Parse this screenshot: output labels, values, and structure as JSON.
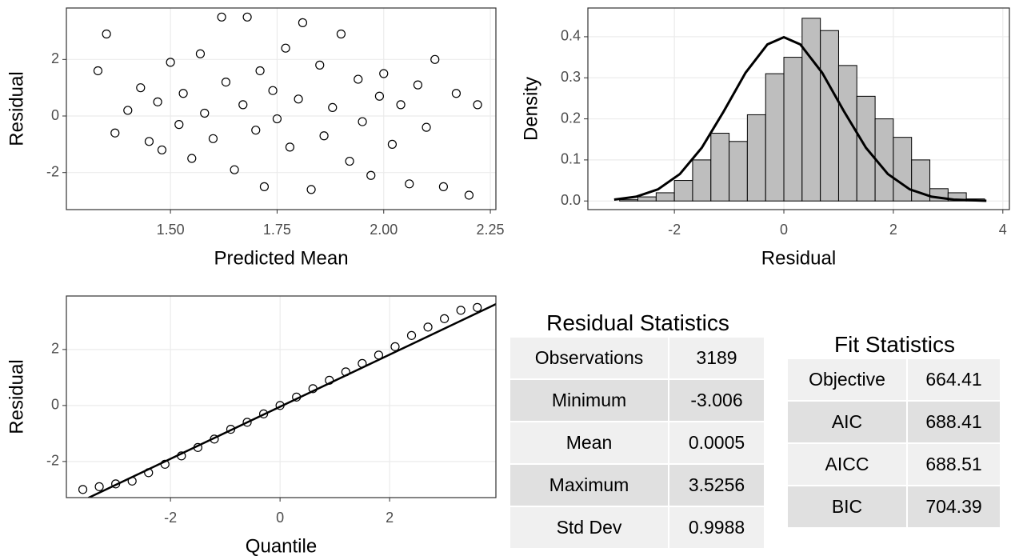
{
  "chart_data": [
    {
      "type": "scatter",
      "x_label": "Predicted Mean",
      "y_label": "Residual",
      "x": [
        1.33,
        1.35,
        1.37,
        1.4,
        1.43,
        1.45,
        1.47,
        1.48,
        1.5,
        1.52,
        1.53,
        1.55,
        1.57,
        1.58,
        1.6,
        1.62,
        1.63,
        1.65,
        1.67,
        1.68,
        1.7,
        1.71,
        1.72,
        1.74,
        1.75,
        1.77,
        1.78,
        1.8,
        1.81,
        1.83,
        1.85,
        1.86,
        1.88,
        1.9,
        1.92,
        1.94,
        1.95,
        1.97,
        1.99,
        2.0,
        2.02,
        2.04,
        2.06,
        2.08,
        2.1,
        2.12,
        2.14,
        2.17,
        2.2,
        2.22
      ],
      "values": [
        1.6,
        2.9,
        -0.6,
        0.2,
        1.0,
        -0.9,
        0.5,
        -1.2,
        1.9,
        -0.3,
        0.8,
        -1.5,
        2.2,
        0.1,
        -0.8,
        3.5,
        1.2,
        -1.9,
        0.4,
        3.5,
        -0.5,
        1.6,
        -2.5,
        0.9,
        -0.1,
        2.4,
        -1.1,
        0.6,
        3.3,
        -2.6,
        1.8,
        -0.7,
        0.3,
        2.9,
        -1.6,
        1.3,
        -0.2,
        -2.1,
        0.7,
        1.5,
        -1.0,
        0.4,
        -2.4,
        1.1,
        -0.4,
        2.0,
        -2.5,
        0.8,
        -2.8,
        0.4
      ],
      "color": "#000000",
      "xlim": [
        1.256,
        2.263
      ],
      "xticks": [
        {
          "value": 1.5,
          "label": "1.50"
        },
        1.75,
        {
          "value": 2.0,
          "label": "2.00"
        },
        2.25
      ],
      "ylim": [
        -3.31,
        3.82
      ],
      "yticks": [
        -2,
        0,
        2
      ],
      "grid": true
    },
    {
      "type": "histogram",
      "x_label": "Residual",
      "y_label": "Density",
      "bins": [
        -3.0,
        -2.667,
        -2.333,
        -2.0,
        -1.667,
        -1.333,
        -1.0,
        -0.667,
        -0.333,
        0.0,
        0.333,
        0.667,
        1.0,
        1.333,
        1.667,
        2.0,
        2.333,
        2.667,
        3.0,
        3.333,
        3.667
      ],
      "values": [
        0.003,
        0.01,
        0.02,
        0.05,
        0.1,
        0.165,
        0.145,
        0.21,
        0.31,
        0.35,
        0.445,
        0.415,
        0.33,
        0.255,
        0.2,
        0.155,
        0.1,
        0.03,
        0.02,
        0.005
      ],
      "color": "#bebebe",
      "density_curve": {
        "x": [
          -3.1,
          -2.7,
          -2.3,
          -1.9,
          -1.5,
          -1.1,
          -0.7,
          -0.3,
          0,
          0.3,
          0.7,
          1.1,
          1.5,
          1.9,
          2.3,
          2.7,
          3.1,
          3.7
        ],
        "y": [
          0.0033,
          0.0104,
          0.0283,
          0.0656,
          0.1295,
          0.2179,
          0.3123,
          0.3814,
          0.3989,
          0.3814,
          0.3123,
          0.2179,
          0.1295,
          0.0656,
          0.0283,
          0.0104,
          0.0033,
          0.0004
        ]
      },
      "xlim": [
        -3.58,
        4.12
      ],
      "xticks": [
        -2,
        0,
        2,
        4
      ],
      "ylim": [
        -0.021,
        0.47
      ],
      "yticks": [
        {
          "value": 0,
          "label": "0.0"
        },
        0.1,
        0.2,
        0.3,
        0.4
      ],
      "grid": true
    },
    {
      "type": "qq",
      "x_label": "Quantile",
      "y_label": "Residual",
      "x": [
        -3.6,
        -3.3,
        -3.0,
        -2.7,
        -2.4,
        -2.1,
        -1.8,
        -1.5,
        -1.2,
        -0.9,
        -0.6,
        -0.3,
        0,
        0.3,
        0.6,
        0.9,
        1.2,
        1.5,
        1.8,
        2.1,
        2.4,
        2.7,
        3.0,
        3.3,
        3.6
      ],
      "values": [
        -3.0,
        -2.9,
        -2.8,
        -2.7,
        -2.4,
        -2.1,
        -1.8,
        -1.5,
        -1.2,
        -0.85,
        -0.6,
        -0.3,
        0,
        0.3,
        0.6,
        0.9,
        1.2,
        1.5,
        1.8,
        2.1,
        2.5,
        2.8,
        3.1,
        3.4,
        3.5
      ],
      "color": "#000000",
      "reference_line": {
        "x": [
          -3.5,
          3.94
        ],
        "y": [
          -3.3,
          3.62
        ]
      },
      "xlim": [
        -3.9,
        3.94
      ],
      "xticks": [
        -2,
        0,
        2
      ],
      "ylim": [
        -3.29,
        3.91
      ],
      "yticks": [
        -2,
        0,
        2
      ],
      "grid": true
    }
  ],
  "tables": [
    {
      "title": "Residual Statistics",
      "rows": [
        [
          "Observations",
          "3189"
        ],
        [
          "Minimum",
          "-3.006"
        ],
        [
          "Mean",
          "0.0005"
        ],
        [
          "Maximum",
          "3.5256"
        ],
        [
          "Std Dev",
          "0.9988"
        ]
      ]
    },
    {
      "title": "Fit Statistics",
      "rows": [
        [
          "Objective",
          "664.41"
        ],
        [
          "AIC",
          "688.41"
        ],
        [
          "AICC",
          "688.51"
        ],
        [
          "BIC",
          "704.39"
        ]
      ]
    }
  ]
}
